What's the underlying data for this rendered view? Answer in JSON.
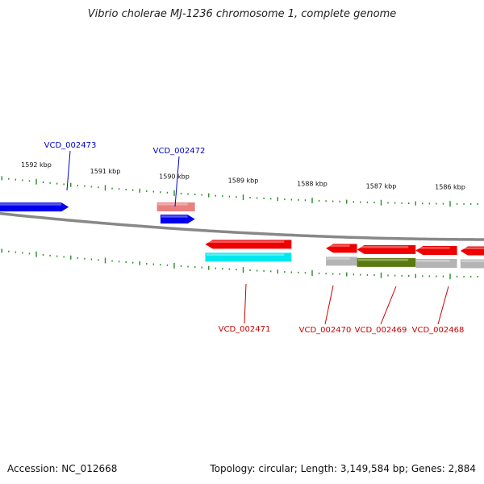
{
  "title": "Vibrio cholerae MJ-1236 chromosome 1, complete genome",
  "footer": {
    "accession": "Accession: NC_012668",
    "stats": "Topology: circular; Length: 3,149,584 bp; Genes: 2,884"
  },
  "colors": {
    "forward_cds": "#0000ee",
    "forward_pseudo": "#e88080",
    "reverse_cds": "#ee0000",
    "reverse_gray": "#b4b4b4",
    "reverse_cyan": "#00e8ee",
    "reverse_olive": "#5a7a10",
    "backbone": "#888888",
    "ticks": "#2a8a2a",
    "label_forward": "#0000cc",
    "label_reverse": "#cc0000"
  },
  "chart_data": {
    "type": "genome-map",
    "view_range_kbp": [
      1585.5,
      1592.5
    ],
    "scale_labels": [
      {
        "text": "1592 kbp",
        "kbp": 1592
      },
      {
        "text": "1591 kbp",
        "kbp": 1591
      },
      {
        "text": "1590 kbp",
        "kbp": 1590
      },
      {
        "text": "1589 kbp",
        "kbp": 1589
      },
      {
        "text": "1588 kbp",
        "kbp": 1588
      },
      {
        "text": "1587 kbp",
        "kbp": 1587
      },
      {
        "text": "1586 kbp",
        "kbp": 1586
      }
    ],
    "genes": [
      {
        "label": "VCD_002473",
        "strand": "+",
        "lane": 1,
        "color": "forward_cds",
        "start_kbp": 1591.53,
        "end_kbp": 1592.6
      },
      {
        "label": "VCD_002472",
        "strand": "+",
        "lane": 1,
        "color": "forward_cds",
        "start_kbp": 1589.7,
        "end_kbp": 1590.2
      },
      {
        "label": "",
        "strand": "+",
        "lane": 0,
        "color": "forward_pseudo",
        "start_kbp": 1589.7,
        "end_kbp": 1590.25
      },
      {
        "label": "VCD_002471",
        "strand": "-",
        "lane": 0,
        "color": "reverse_cds",
        "start_kbp": 1588.3,
        "end_kbp": 1589.55
      },
      {
        "label": "",
        "strand": "-",
        "lane": 1,
        "color": "reverse_cyan",
        "start_kbp": 1588.3,
        "end_kbp": 1589.55
      },
      {
        "label": "VCD_002470",
        "strand": "-",
        "lane": 0,
        "color": "reverse_cds",
        "start_kbp": 1587.35,
        "end_kbp": 1587.8
      },
      {
        "label": "",
        "strand": "-",
        "lane": 1,
        "color": "reverse_gray",
        "start_kbp": 1587.35,
        "end_kbp": 1587.8
      },
      {
        "label": "VCD_002469",
        "strand": "-",
        "lane": 0,
        "color": "reverse_cds",
        "start_kbp": 1586.5,
        "end_kbp": 1587.35
      },
      {
        "label": "",
        "strand": "-",
        "lane": 1,
        "color": "reverse_olive",
        "start_kbp": 1586.5,
        "end_kbp": 1587.35
      },
      {
        "label": "VCD_002468",
        "strand": "-",
        "lane": 0,
        "color": "reverse_cds",
        "start_kbp": 1585.9,
        "end_kbp": 1586.5
      },
      {
        "label": "",
        "strand": "-",
        "lane": 1,
        "color": "reverse_gray",
        "start_kbp": 1585.9,
        "end_kbp": 1586.5
      },
      {
        "label": "",
        "strand": "-",
        "lane": 0,
        "color": "reverse_cds",
        "start_kbp": 1585.4,
        "end_kbp": 1585.85
      },
      {
        "label": "",
        "strand": "-",
        "lane": 1,
        "color": "reverse_gray",
        "start_kbp": 1585.4,
        "end_kbp": 1585.85
      }
    ]
  }
}
